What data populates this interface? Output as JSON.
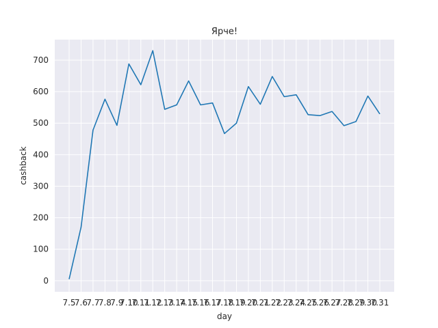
{
  "chart_data": {
    "type": "line",
    "title": "Ярче!",
    "xlabel": "day",
    "ylabel": "cashback",
    "categories": [
      "7.5",
      "7.6",
      "7.7",
      "7.8",
      "7.9",
      "7.10",
      "7.11",
      "7.12",
      "7.13",
      "7.14",
      "7.15",
      "7.16",
      "7.17",
      "7.18",
      "7.19",
      "7.20",
      "7.21",
      "7.22",
      "7.23",
      "7.24",
      "7.25",
      "7.26",
      "7.27",
      "7.28",
      "7.29",
      "7.30",
      "7.31"
    ],
    "series": [
      {
        "values": [
          5,
          170,
          478,
          576,
          493,
          688,
          622,
          730,
          544,
          558,
          634,
          558,
          564,
          467,
          500,
          616,
          560,
          648,
          584,
          590,
          527,
          524,
          537,
          492,
          505,
          586,
          529
        ],
        "color": "#1f77b4"
      }
    ],
    "yticks": [
      0,
      100,
      200,
      300,
      400,
      500,
      600,
      700
    ],
    "ylim": [
      -35,
      765
    ],
    "grid": true,
    "background": "#eaeaf2"
  }
}
